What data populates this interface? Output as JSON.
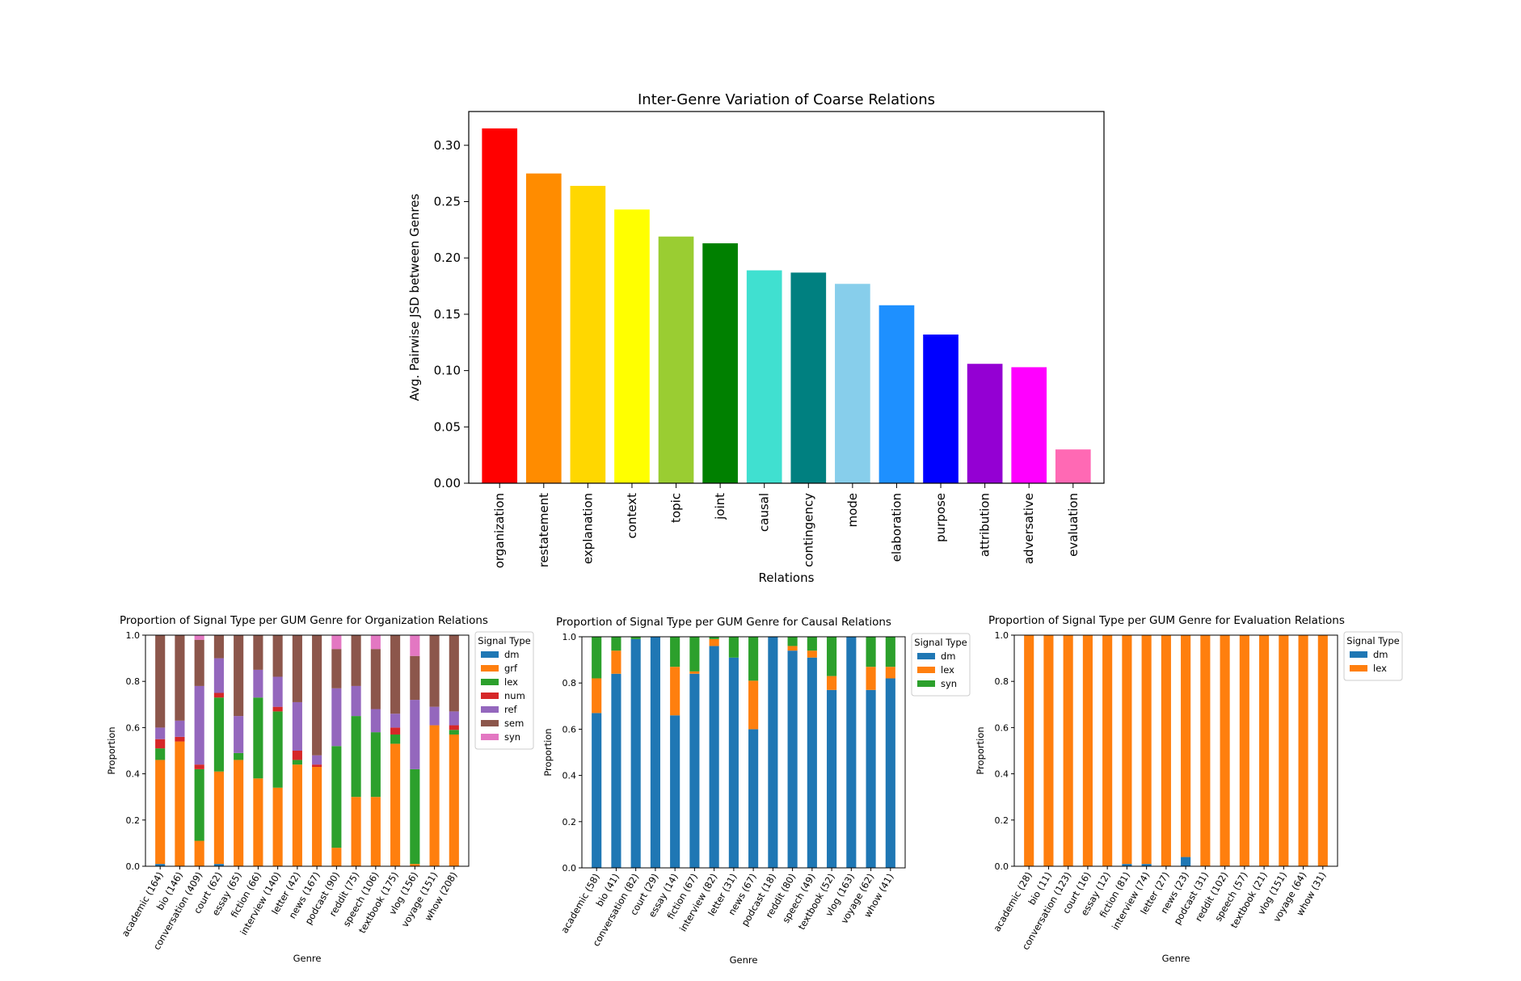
{
  "chart_data": [
    {
      "type": "bar",
      "title": "Inter-Genre Variation of Coarse Relations",
      "xlabel": "Relations",
      "ylabel": "Avg. Pairwise JSD between Genres",
      "ylim": [
        0,
        0.33
      ],
      "yticks": [
        "0.00",
        "0.05",
        "0.10",
        "0.15",
        "0.20",
        "0.25",
        "0.30"
      ],
      "categories": [
        "organization",
        "restatement",
        "explanation",
        "context",
        "topic",
        "joint",
        "causal",
        "contingency",
        "mode",
        "elaboration",
        "purpose",
        "attribution",
        "adversative",
        "evaluation"
      ],
      "values": [
        0.315,
        0.275,
        0.264,
        0.243,
        0.219,
        0.213,
        0.189,
        0.187,
        0.177,
        0.158,
        0.132,
        0.106,
        0.103,
        0.03
      ],
      "colors": [
        "#ff0000",
        "#ff8c00",
        "#ffd700",
        "#ffff00",
        "#9acd32",
        "#008000",
        "#40e0d0",
        "#008080",
        "#87ceeb",
        "#1e90ff",
        "#0000ff",
        "#9400d3",
        "#ff00ff",
        "#ff69b4"
      ],
      "grid": false
    },
    {
      "type": "bar",
      "stacked": true,
      "title": "Proportion of Signal Type per GUM Genre for Organization Relations",
      "xlabel": "Genre",
      "ylabel": "Proportion",
      "ylim": [
        0,
        1.0
      ],
      "yticks": [
        "0.0",
        "0.2",
        "0.4",
        "0.6",
        "0.8",
        "1.0"
      ],
      "legend_title": "Signal Type",
      "legend_position": "right",
      "categories": [
        "academic (164)",
        "bio (146)",
        "conversation (409)",
        "court (62)",
        "essay (65)",
        "fiction (66)",
        "interview (140)",
        "letter (42)",
        "news (167)",
        "podcast (90)",
        "reddit (75)",
        "speech (106)",
        "textbook (175)",
        "vlog (156)",
        "voyage (151)",
        "whow (208)"
      ],
      "series": [
        {
          "name": "dm",
          "color": "#1f77b4",
          "values": [
            0.01,
            0,
            0,
            0.01,
            0,
            0,
            0,
            0,
            0,
            0,
            0,
            0,
            0,
            0,
            0,
            0
          ]
        },
        {
          "name": "grf",
          "color": "#ff7f0e",
          "values": [
            0.45,
            0.54,
            0.11,
            0.4,
            0.46,
            0.38,
            0.34,
            0.44,
            0.43,
            0.08,
            0.3,
            0.3,
            0.53,
            0.01,
            0.61,
            0.57
          ]
        },
        {
          "name": "lex",
          "color": "#2ca02c",
          "values": [
            0.05,
            0,
            0.31,
            0.32,
            0.03,
            0.35,
            0.33,
            0.02,
            0,
            0.44,
            0.35,
            0.28,
            0.04,
            0.41,
            0,
            0.02
          ]
        },
        {
          "name": "num",
          "color": "#d62728",
          "values": [
            0.04,
            0.02,
            0.02,
            0.02,
            0,
            0,
            0.02,
            0.04,
            0.01,
            0,
            0,
            0,
            0.03,
            0,
            0,
            0.02
          ]
        },
        {
          "name": "ref",
          "color": "#9467bd",
          "values": [
            0.05,
            0.07,
            0.34,
            0.15,
            0.16,
            0.12,
            0.13,
            0.21,
            0.04,
            0.25,
            0.13,
            0.1,
            0.06,
            0.3,
            0.08,
            0.06
          ]
        },
        {
          "name": "sem",
          "color": "#8c564b",
          "values": [
            0.4,
            0.37,
            0.2,
            0.1,
            0.35,
            0.15,
            0.18,
            0.29,
            0.52,
            0.17,
            0.22,
            0.26,
            0.34,
            0.19,
            0.31,
            0.33
          ]
        },
        {
          "name": "syn",
          "color": "#e377c2",
          "values": [
            0,
            0,
            0.02,
            0,
            0,
            0,
            0,
            0,
            0,
            0.06,
            0,
            0.06,
            0,
            0.09,
            0,
            0
          ]
        }
      ]
    },
    {
      "type": "bar",
      "stacked": true,
      "title": "Proportion of Signal Type per GUM Genre for Causal Relations",
      "xlabel": "Genre",
      "ylabel": "Proportion",
      "ylim": [
        0,
        1.0
      ],
      "yticks": [
        "0.0",
        "0.2",
        "0.4",
        "0.6",
        "0.8",
        "1.0"
      ],
      "legend_title": "Signal Type",
      "legend_position": "right",
      "categories": [
        "academic (58)",
        "bio (41)",
        "conversation (82)",
        "court (29)",
        "essay (14)",
        "fiction (67)",
        "interview (82)",
        "letter (31)",
        "news (67)",
        "podcast (18)",
        "reddit (80)",
        "speech (49)",
        "textbook (52)",
        "vlog (163)",
        "voyage (62)",
        "whow (41)"
      ],
      "series": [
        {
          "name": "dm",
          "color": "#1f77b4",
          "values": [
            0.67,
            0.84,
            0.99,
            1.0,
            0.66,
            0.84,
            0.96,
            0.91,
            0.6,
            1.0,
            0.94,
            0.91,
            0.77,
            1.0,
            0.77,
            0.82
          ]
        },
        {
          "name": "lex",
          "color": "#ff7f0e",
          "values": [
            0.15,
            0.1,
            0,
            0,
            0.21,
            0.01,
            0.03,
            0,
            0.21,
            0,
            0.02,
            0.03,
            0.06,
            0,
            0.1,
            0.05
          ]
        },
        {
          "name": "syn",
          "color": "#2ca02c",
          "values": [
            0.18,
            0.06,
            0.01,
            0,
            0.13,
            0.15,
            0.01,
            0.09,
            0.19,
            0,
            0.04,
            0.06,
            0.17,
            0,
            0.13,
            0.13
          ]
        }
      ]
    },
    {
      "type": "bar",
      "stacked": true,
      "title": "Proportion of Signal Type per GUM Genre for Evaluation Relations",
      "xlabel": "Genre",
      "ylabel": "Proportion",
      "ylim": [
        0,
        1.0
      ],
      "yticks": [
        "0.0",
        "0.2",
        "0.4",
        "0.6",
        "0.8",
        "1.0"
      ],
      "legend_title": "Signal Type",
      "legend_position": "right",
      "categories": [
        "academic (28)",
        "bio (11)",
        "conversation (123)",
        "court (16)",
        "essay (12)",
        "fiction (81)",
        "interview (74)",
        "letter (27)",
        "news (23)",
        "podcast (31)",
        "reddit (102)",
        "speech (57)",
        "textbook (21)",
        "vlog (151)",
        "voyage (64)",
        "whow (31)"
      ],
      "series": [
        {
          "name": "dm",
          "color": "#1f77b4",
          "values": [
            0,
            0,
            0,
            0,
            0,
            0.01,
            0.01,
            0,
            0.04,
            0,
            0,
            0,
            0,
            0,
            0,
            0
          ]
        },
        {
          "name": "lex",
          "color": "#ff7f0e",
          "values": [
            1.0,
            1.0,
            1.0,
            1.0,
            1.0,
            0.99,
            0.99,
            1.0,
            0.96,
            1.0,
            1.0,
            1.0,
            1.0,
            1.0,
            1.0,
            1.0
          ]
        }
      ]
    }
  ]
}
